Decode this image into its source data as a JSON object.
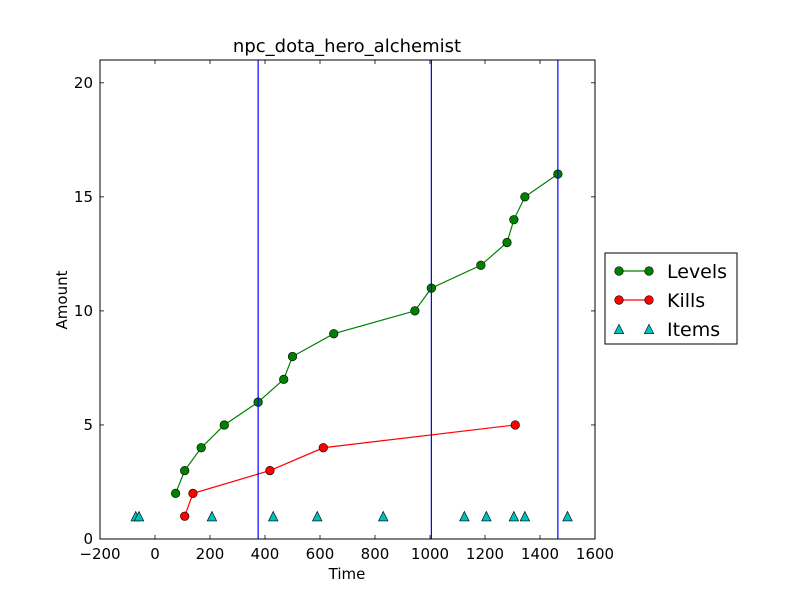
{
  "chart_data": {
    "type": "line",
    "title": "npc_dota_hero_alchemist",
    "xlabel": "Time",
    "ylabel": "Amount",
    "xlim": [
      -200,
      1600
    ],
    "ylim": [
      0,
      21
    ],
    "xticks": [
      -200,
      0,
      200,
      400,
      600,
      800,
      1000,
      1200,
      1400,
      1600
    ],
    "yticks": [
      0,
      5,
      10,
      15,
      20
    ],
    "grid": false,
    "legend_position": "right, outside plot",
    "vertical_lines": {
      "color": "#0000ff",
      "x": [
        375,
        1005,
        1465
      ]
    },
    "series": [
      {
        "name": "Levels",
        "color": "#008000",
        "style": "line-marker-circle",
        "x": [
          75,
          108,
          168,
          252,
          375,
          468,
          500,
          650,
          945,
          1005,
          1185,
          1280,
          1305,
          1345,
          1465
        ],
        "y": [
          2,
          3,
          4,
          5,
          6,
          7,
          8,
          9,
          10,
          11,
          12,
          13,
          14,
          15,
          16
        ]
      },
      {
        "name": "Kills",
        "color": "#ff0000",
        "style": "line-marker-circle",
        "x": [
          108,
          138,
          418,
          612,
          1310
        ],
        "y": [
          1,
          2,
          3,
          4,
          5
        ]
      },
      {
        "name": "Items",
        "color": "#00bfbf",
        "style": "marker-triangle",
        "x": [
          -70,
          -58,
          207,
          430,
          590,
          830,
          1125,
          1205,
          1305,
          1345,
          1500
        ],
        "y": [
          1,
          1,
          1,
          1,
          1,
          1,
          1,
          1,
          1,
          1,
          1
        ]
      }
    ]
  }
}
